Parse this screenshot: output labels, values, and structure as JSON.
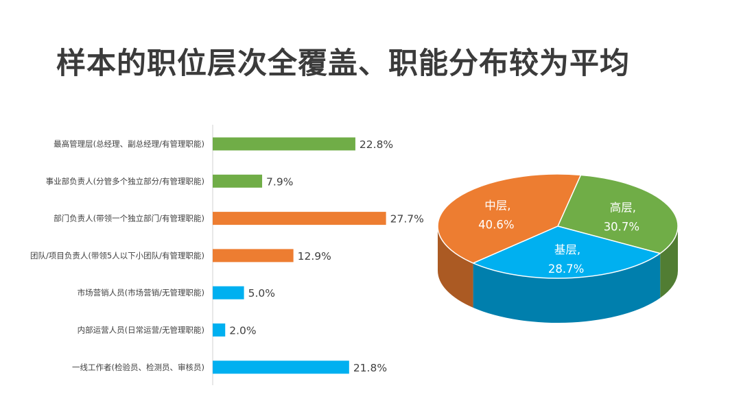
{
  "page": {
    "title": "样本的职位层次全覆盖、职能分布较为平均"
  },
  "chart_data": [
    {
      "type": "bar",
      "orientation": "horizontal",
      "categories": [
        "最高管理层(总经理、副总经理/有管理职能)",
        "事业部负责人(分管多个独立部分/有管理职能)",
        "部门负责人(带领一个独立部门/有管理职能)",
        "团队/项目负责人(带领5人以下小团队/有管理职能)",
        "市场营销人员(市场营销/无管理职能)",
        "内部运营人员(日常运营/无管理职能)",
        "一线工作者(检验员、检测员、审核员)"
      ],
      "values": [
        22.8,
        7.9,
        27.7,
        12.9,
        5.0,
        2.0,
        21.8
      ],
      "value_labels": [
        "22.8%",
        "7.9%",
        "27.7%",
        "12.9%",
        "5.0%",
        "2.0%",
        "21.8%"
      ],
      "bar_colors": [
        "#70ad47",
        "#70ad47",
        "#ed7d31",
        "#ed7d31",
        "#00b0f0",
        "#00b0f0",
        "#00b0f0"
      ],
      "xlim": [
        0,
        30
      ],
      "grid": false,
      "legend": "none"
    },
    {
      "type": "pie",
      "style": "3d",
      "labels": [
        "高层,",
        "基层,",
        "中层,"
      ],
      "values": [
        30.7,
        28.7,
        40.6
      ],
      "value_labels": [
        "30.7%",
        "28.7%",
        "40.6%"
      ],
      "colors": [
        "#70ad47",
        "#00b0f0",
        "#ed7d31"
      ],
      "label_color": "#ffffff",
      "legend": "none"
    }
  ]
}
